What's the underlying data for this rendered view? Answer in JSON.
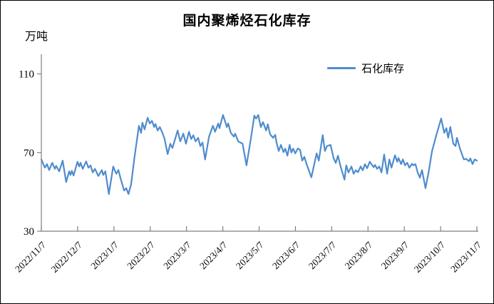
{
  "title": "国内聚烯烃石化库存",
  "unit_label": "万吨",
  "legend": {
    "label": "石化库存"
  },
  "colors": {
    "series_line": "#4f8ccd",
    "axis": "#808080",
    "text": "#000000",
    "background": "#ffffff",
    "frame_border": "#000000"
  },
  "axes": {
    "y_tick_labels": [
      "110",
      "70",
      "30"
    ],
    "y_tick_values": [
      110,
      70,
      30
    ],
    "x_tick_labels": [
      "2022/11/7",
      "2022/12/7",
      "2023/1/7",
      "2023/2/7",
      "2023/3/7",
      "2023/4/7",
      "2023/5/7",
      "2023/6/7",
      "2023/7/7",
      "2023/8/7",
      "2023/9/7",
      "2023/10/7",
      "2023/11/7"
    ]
  },
  "chart_data": {
    "type": "line",
    "title": "国内聚烯烃石化库存",
    "ylabel": "万吨",
    "legend_position": "top-right",
    "grid": false,
    "series_name": "石化库存",
    "ylim": [
      30,
      120
    ],
    "y_ticks": [
      30,
      70,
      110
    ],
    "x_range": [
      "2022/11/7",
      "2023/11/7"
    ],
    "x_tick_labels": [
      "2022/11/7",
      "2022/12/7",
      "2023/1/7",
      "2023/2/7",
      "2023/3/7",
      "2023/4/7",
      "2023/5/7",
      "2023/6/7",
      "2023/7/7",
      "2023/8/7",
      "2023/9/7",
      "2023/10/7",
      "2023/11/7"
    ],
    "points_format": "[fraction_of_x_range, value_in_wan_tons]",
    "points": [
      [
        0.0,
        66.5
      ],
      [
        0.008,
        62.3
      ],
      [
        0.013,
        64.1
      ],
      [
        0.018,
        61.1
      ],
      [
        0.025,
        64.8
      ],
      [
        0.031,
        61.7
      ],
      [
        0.034,
        63.2
      ],
      [
        0.041,
        60.5
      ],
      [
        0.049,
        65.9
      ],
      [
        0.057,
        55.0
      ],
      [
        0.064,
        60.5
      ],
      [
        0.067,
        58.6
      ],
      [
        0.07,
        60.7
      ],
      [
        0.074,
        58.3
      ],
      [
        0.083,
        65.3
      ],
      [
        0.087,
        62.9
      ],
      [
        0.09,
        64.8
      ],
      [
        0.095,
        61.7
      ],
      [
        0.103,
        65.5
      ],
      [
        0.108,
        62.3
      ],
      [
        0.113,
        63.5
      ],
      [
        0.118,
        59.9
      ],
      [
        0.123,
        61.7
      ],
      [
        0.131,
        58.1
      ],
      [
        0.139,
        61.1
      ],
      [
        0.142,
        58.6
      ],
      [
        0.147,
        60.5
      ],
      [
        0.155,
        48.9
      ],
      [
        0.165,
        62.9
      ],
      [
        0.172,
        59.2
      ],
      [
        0.177,
        61.1
      ],
      [
        0.182,
        56.8
      ],
      [
        0.19,
        50.7
      ],
      [
        0.195,
        51.9
      ],
      [
        0.2,
        48.9
      ],
      [
        0.206,
        53.8
      ],
      [
        0.214,
        68.0
      ],
      [
        0.224,
        83.6
      ],
      [
        0.229,
        80.0
      ],
      [
        0.232,
        85.2
      ],
      [
        0.237,
        81.8
      ],
      [
        0.244,
        87.7
      ],
      [
        0.249,
        84.8
      ],
      [
        0.254,
        86.1
      ],
      [
        0.259,
        83.0
      ],
      [
        0.262,
        84.5
      ],
      [
        0.267,
        81.2
      ],
      [
        0.272,
        83.0
      ],
      [
        0.278,
        80.0
      ],
      [
        0.283,
        76.9
      ],
      [
        0.29,
        69.2
      ],
      [
        0.296,
        74.5
      ],
      [
        0.301,
        72.3
      ],
      [
        0.313,
        81.2
      ],
      [
        0.319,
        75.7
      ],
      [
        0.326,
        79.6
      ],
      [
        0.332,
        74.5
      ],
      [
        0.339,
        80.6
      ],
      [
        0.344,
        76.9
      ],
      [
        0.349,
        78.8
      ],
      [
        0.354,
        75.7
      ],
      [
        0.36,
        77.5
      ],
      [
        0.365,
        73.3
      ],
      [
        0.37,
        75.1
      ],
      [
        0.376,
        66.5
      ],
      [
        0.385,
        78.1
      ],
      [
        0.394,
        83.6
      ],
      [
        0.399,
        80.6
      ],
      [
        0.406,
        84.8
      ],
      [
        0.409,
        82.4
      ],
      [
        0.417,
        89.1
      ],
      [
        0.426,
        83.0
      ],
      [
        0.429,
        84.8
      ],
      [
        0.435,
        80.0
      ],
      [
        0.442,
        78.1
      ],
      [
        0.445,
        79.6
      ],
      [
        0.452,
        75.7
      ],
      [
        0.462,
        74.5
      ],
      [
        0.471,
        63.5
      ],
      [
        0.481,
        77.0
      ],
      [
        0.489,
        88.8
      ],
      [
        0.493,
        87.3
      ],
      [
        0.498,
        89.1
      ],
      [
        0.504,
        83.0
      ],
      [
        0.509,
        85.5
      ],
      [
        0.516,
        81.2
      ],
      [
        0.52,
        84.4
      ],
      [
        0.525,
        79.4
      ],
      [
        0.532,
        77.5
      ],
      [
        0.537,
        79.0
      ],
      [
        0.54,
        75.1
      ],
      [
        0.545,
        70.8
      ],
      [
        0.55,
        73.9
      ],
      [
        0.556,
        70.2
      ],
      [
        0.56,
        72.0
      ],
      [
        0.565,
        68.4
      ],
      [
        0.57,
        73.9
      ],
      [
        0.574,
        70.0
      ],
      [
        0.578,
        72.0
      ],
      [
        0.583,
        69.6
      ],
      [
        0.589,
        72.1
      ],
      [
        0.594,
        71.4
      ],
      [
        0.599,
        65.9
      ],
      [
        0.604,
        67.8
      ],
      [
        0.609,
        64.1
      ],
      [
        0.62,
        57.4
      ],
      [
        0.632,
        69.6
      ],
      [
        0.637,
        65.9
      ],
      [
        0.646,
        78.9
      ],
      [
        0.651,
        70.8
      ],
      [
        0.656,
        73.3
      ],
      [
        0.664,
        73.9
      ],
      [
        0.671,
        67.2
      ],
      [
        0.676,
        64.7
      ],
      [
        0.681,
        68.4
      ],
      [
        0.687,
        62.9
      ],
      [
        0.696,
        56.2
      ],
      [
        0.7,
        63.5
      ],
      [
        0.705,
        59.9
      ],
      [
        0.712,
        62.9
      ],
      [
        0.717,
        59.2
      ],
      [
        0.722,
        61.0
      ],
      [
        0.727,
        60.0
      ],
      [
        0.733,
        62.9
      ],
      [
        0.738,
        61.0
      ],
      [
        0.743,
        64.1
      ],
      [
        0.748,
        62.0
      ],
      [
        0.754,
        65.3
      ],
      [
        0.758,
        64.1
      ],
      [
        0.763,
        62.5
      ],
      [
        0.766,
        63.7
      ],
      [
        0.771,
        61.7
      ],
      [
        0.776,
        62.9
      ],
      [
        0.781,
        59.9
      ],
      [
        0.787,
        69.0
      ],
      [
        0.794,
        59.2
      ],
      [
        0.799,
        66.5
      ],
      [
        0.804,
        62.3
      ],
      [
        0.812,
        68.6
      ],
      [
        0.817,
        65.3
      ],
      [
        0.82,
        67.2
      ],
      [
        0.826,
        64.1
      ],
      [
        0.83,
        66.5
      ],
      [
        0.835,
        63.5
      ],
      [
        0.84,
        64.8
      ],
      [
        0.845,
        62.3
      ],
      [
        0.851,
        64.3
      ],
      [
        0.854,
        63.5
      ],
      [
        0.859,
        64.1
      ],
      [
        0.864,
        59.9
      ],
      [
        0.869,
        57.2
      ],
      [
        0.874,
        61.1
      ],
      [
        0.882,
        51.9
      ],
      [
        0.889,
        59.9
      ],
      [
        0.897,
        70.8
      ],
      [
        0.907,
        79.0
      ],
      [
        0.918,
        87.3
      ],
      [
        0.925,
        80.0
      ],
      [
        0.93,
        82.4
      ],
      [
        0.934,
        77.5
      ],
      [
        0.939,
        83.0
      ],
      [
        0.946,
        74.5
      ],
      [
        0.951,
        73.3
      ],
      [
        0.954,
        77.5
      ],
      [
        0.962,
        71.4
      ],
      [
        0.97,
        66.5
      ],
      [
        0.975,
        66.8
      ],
      [
        0.982,
        65.6
      ],
      [
        0.985,
        67.0
      ],
      [
        0.99,
        64.1
      ],
      [
        0.995,
        66.5
      ],
      [
        1.0,
        65.9
      ]
    ]
  }
}
